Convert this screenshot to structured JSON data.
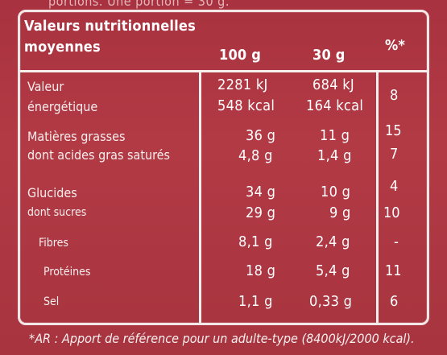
{
  "top_text": "portions. Une portion = 30 g.",
  "header": {
    "title_line1": "Valeurs nutritionnelles",
    "title_line2": "moyennes",
    "col_100g": "100 g",
    "col_30g": "30 g",
    "col_pct": "%*"
  },
  "rows": [
    {
      "label": "Valeur",
      "v100": "2281 kJ",
      "v30": "684 kJ",
      "pct": "8"
    },
    {
      "label": "énergétique",
      "v100": "548 kcal",
      "v30": "164 kcal",
      "pct": ""
    },
    {
      "label": "Matières grasses",
      "v100": "36 g",
      "v30": "11 g",
      "pct": "15"
    },
    {
      "label": "dont acides gras saturés",
      "v100": "4,8 g",
      "v30": "1,4 g",
      "pct": "7"
    },
    {
      "label": "Glucides",
      "v100": "34 g",
      "v30": "10 g",
      "pct": "4"
    },
    {
      "label": "dont sucres",
      "v100": "29 g",
      "v30": "9 g",
      "pct": "10"
    },
    {
      "label": "Fibres",
      "v100": "8,1 g",
      "v30": "2,4 g",
      "pct": "-"
    },
    {
      "label": "Protéines",
      "v100": "18 g",
      "v30": "5,4 g",
      "pct": "11"
    },
    {
      "label": "Sel",
      "v100": "1,1 g",
      "v30": "0,33 g",
      "pct": "6"
    }
  ],
  "footnote": "*AR : Apport de référence pour un adulte-type (8400kJ/2000 kcal)."
}
